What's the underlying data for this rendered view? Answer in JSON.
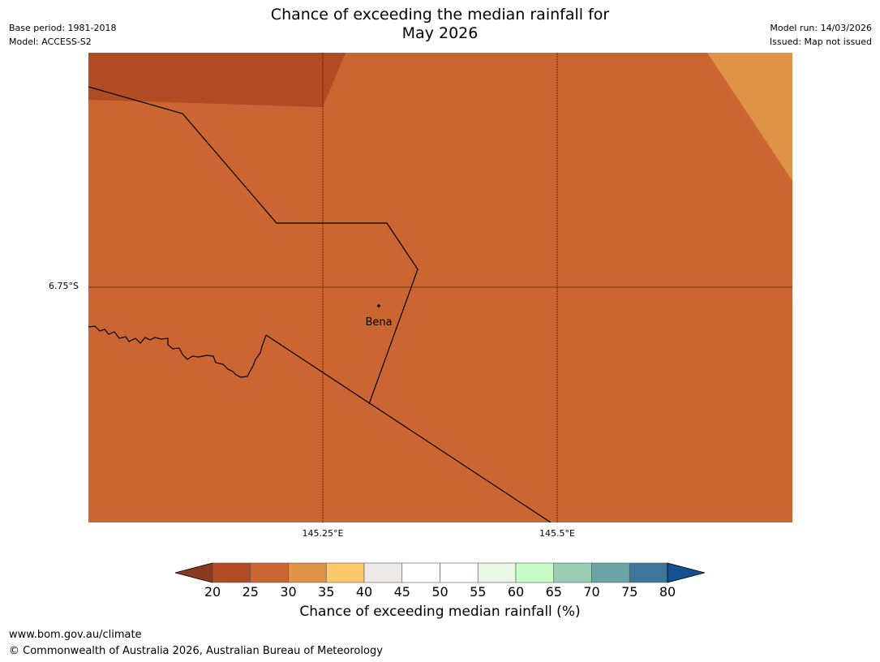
{
  "header": {
    "title_line1": "Chance of exceeding the median rainfall for",
    "title_line2": "May 2026",
    "base_period": "Base period: 1981-2018",
    "model": "Model: ACCESS-S2",
    "model_run": "Model run: 14/03/2026",
    "issued": "Issued: Map not issued"
  },
  "map": {
    "lat_label": "6.75°S",
    "lon_labels": [
      "145.25°E",
      "145.5°E"
    ],
    "place": "Bena",
    "colors": {
      "c20_25": "#b04b24",
      "c25_30": "#cb6532",
      "c30_35": "#e09246"
    }
  },
  "colorbar": {
    "ticks": [
      "20",
      "25",
      "30",
      "35",
      "40",
      "45",
      "50",
      "55",
      "60",
      "65",
      "70",
      "75",
      "80"
    ],
    "colors": [
      "#8a3a20",
      "#b04b24",
      "#cb6532",
      "#e09246",
      "#fdc96b",
      "#ede9e6",
      "#ffffff",
      "#ffffff",
      "#e7f7e4",
      "#c7fcc7",
      "#9bcfb5",
      "#6ba4a5",
      "#3d7698",
      "#12508f"
    ],
    "label": "Chance of exceeding median rainfall (%)"
  },
  "footer": {
    "url": "www.bom.gov.au/climate",
    "copyright": "© Commonwealth of Australia 2026, Australian Bureau of Meteorology"
  }
}
